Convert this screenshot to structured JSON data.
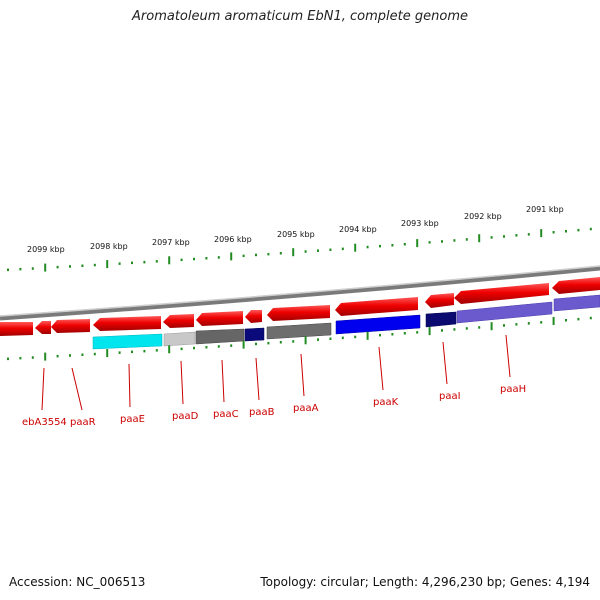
{
  "title": "Aromatoleum aromaticum EbN1, complete genome",
  "footer": {
    "accession": "Accession: NC_006513",
    "topology": "Topology: circular; Length: 4,296,230 bp; Genes: 4,194"
  },
  "ticks": [
    {
      "label": "2099 kbp"
    },
    {
      "label": "2098 kbp"
    },
    {
      "label": "2097 kbp"
    },
    {
      "label": "2096 kbp"
    },
    {
      "label": "2095 kbp"
    },
    {
      "label": "2094 kbp"
    },
    {
      "label": "2093 kbp"
    },
    {
      "label": "2092 kbp"
    },
    {
      "label": "2091 kbp"
    }
  ],
  "gene_labels": [
    {
      "name": "ebA3554",
      "color": "#cc0000"
    },
    {
      "name": "paaR",
      "color": "#cc0000"
    },
    {
      "name": "paaE",
      "color": "#cc0000"
    },
    {
      "name": "paaD",
      "color": "#cc0000"
    },
    {
      "name": "paaC",
      "color": "#cc0000"
    },
    {
      "name": "paaB",
      "color": "#cc0000"
    },
    {
      "name": "paaA",
      "color": "#cc0000"
    },
    {
      "name": "paaK",
      "color": "#cc0000"
    },
    {
      "name": "paaI",
      "color": "#cc0000"
    },
    {
      "name": "paaH",
      "color": "#cc0000"
    }
  ],
  "colors": {
    "gene_red": "#ee0000",
    "backbone": "#8a8a8a",
    "tick_green": "#228b22",
    "label_red": "#cc0000"
  }
}
